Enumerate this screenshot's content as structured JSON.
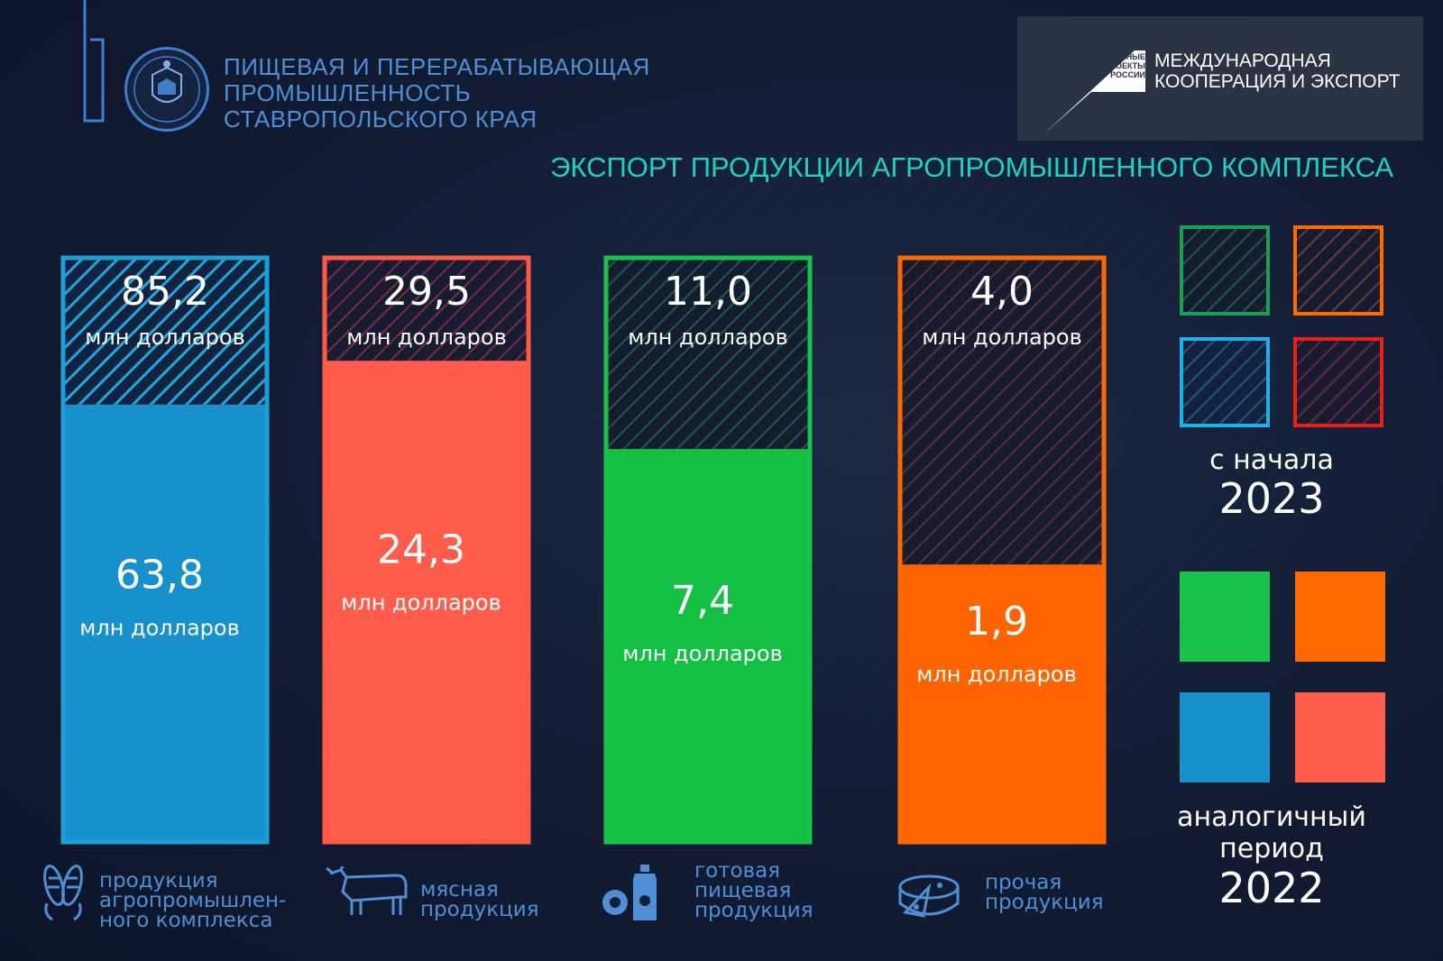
{
  "header": {
    "title_lines": [
      "ПИЩЕВАЯ И ПЕРЕРАБАТЫВАЮЩАЯ",
      "ПРОМЫШЛЕННОСТЬ",
      "СТАВРОПОЛЬСКОГО КРАЯ"
    ],
    "partner_small_lines": [
      "НАЦИОНАЛЬНЫЕ",
      "ПРОЕКТЫ",
      "РОССИИ"
    ],
    "partner_lines": [
      "МЕЖДУНАРОДНАЯ",
      "КООПЕРАЦИЯ И ЭКСПОРТ"
    ]
  },
  "chart_data": {
    "type": "bar",
    "title": "ЭКСПОРТ ПРОДУКЦИИ АГРОПРОМЫШЛЕННОГО КОМПЛЕКСА",
    "unit": "млн долларов",
    "categories": [
      {
        "label_lines": [
          "продукция",
          "агропромышлен-",
          "ного комплекса"
        ],
        "icon": "corn-icon",
        "color_2023": "#1b9fd8",
        "color_2022": "#1790cc"
      },
      {
        "label_lines": [
          "мясная",
          "продукция"
        ],
        "icon": "cow-icon",
        "color_2023": "#ff5a45",
        "color_2022": "#ff5c4c"
      },
      {
        "label_lines": [
          "готовая",
          "пищевая",
          "продукция"
        ],
        "icon": "food-processing-icon",
        "color_2023": "#19c24a",
        "color_2022": "#13c044"
      },
      {
        "label_lines": [
          "прочая",
          "продукция"
        ],
        "icon": "cheese-icon",
        "color_2023": "#ff6a00",
        "color_2022": "#ff6400"
      }
    ],
    "series": [
      {
        "name": "с начала 2023",
        "values": [
          85.2,
          29.5,
          11.0,
          4.0
        ],
        "value_labels": [
          "85,2",
          "29,5",
          "11,0",
          "4,0"
        ],
        "style": "hatched"
      },
      {
        "name": "аналогичный период 2022",
        "values": [
          63.8,
          24.3,
          7.4,
          1.9
        ],
        "value_labels": [
          "63,8",
          "24,3",
          "7,4",
          "1,9"
        ],
        "style": "solid"
      }
    ],
    "legend": {
      "placement": "right",
      "series_2023_lines": [
        "с начала",
        "2023"
      ],
      "series_2022_lines": [
        "аналогичный",
        "период",
        "2022"
      ],
      "hatched_swatch_colors": [
        "#1b9e52",
        "#ff6a00",
        "#1fb0e8",
        "#e8201a"
      ],
      "solid_swatch_colors": [
        "#19c24a",
        "#ff6a00",
        "#1790cc",
        "#ff5c4c"
      ]
    }
  }
}
